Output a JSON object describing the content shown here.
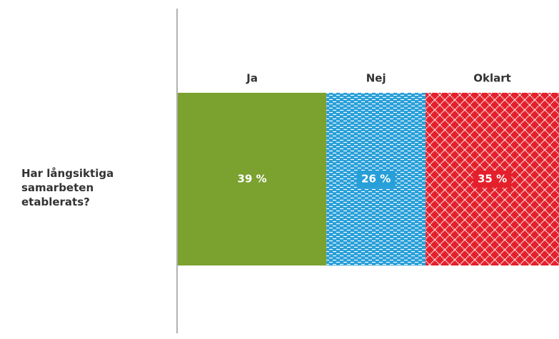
{
  "chart_data": {
    "type": "bar",
    "orientation": "horizontal",
    "stacked": true,
    "categories": [
      "Har långsiktiga samarbeten etablerats?"
    ],
    "xlim": [
      0,
      100
    ],
    "series": [
      {
        "name": "Ja",
        "color": "#7ba12f",
        "pattern": "solid",
        "values": [
          39
        ],
        "value_labels": [
          "39 %"
        ]
      },
      {
        "name": "Nej",
        "color": "#279fd9",
        "pattern": "dashes",
        "values": [
          26
        ],
        "value_labels": [
          "26 %"
        ]
      },
      {
        "name": "Oklart",
        "color": "#e4202c",
        "pattern": "lattice",
        "values": [
          35
        ],
        "value_labels": [
          "35 %"
        ]
      }
    ]
  }
}
